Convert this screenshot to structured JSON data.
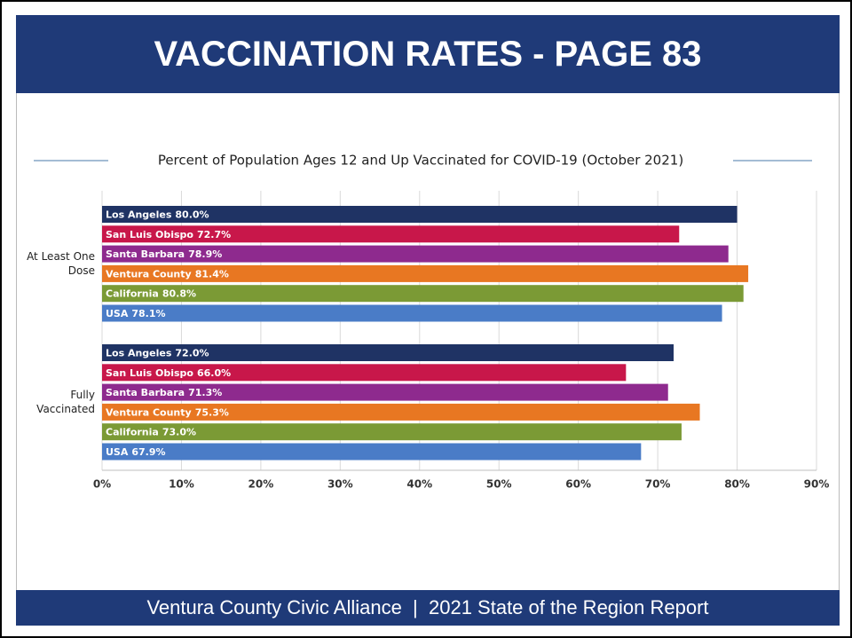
{
  "header": "VACCINATION RATES - PAGE 83",
  "footer": "Ventura County Civic Alliance  |  2021 State of the Region Report",
  "chart_data": {
    "type": "bar",
    "orientation": "horizontal",
    "title": "Percent of Population Ages 12 and Up Vaccinated for COVID-19 (October 2021)",
    "categories": [
      "At Least One Dose",
      "Fully Vaccinated"
    ],
    "series": [
      {
        "name": "Los Angeles",
        "color": "#1f3364",
        "values": [
          80.0,
          72.0
        ],
        "value_labels": [
          "80.0%",
          "72.0%"
        ]
      },
      {
        "name": "San Luis Obispo",
        "color": "#c8174a",
        "values": [
          72.7,
          66.0
        ],
        "value_labels": [
          "72.7%",
          "66.0%"
        ]
      },
      {
        "name": "Santa Barbara",
        "color": "#8e2a8e",
        "values": [
          78.9,
          71.3
        ],
        "value_labels": [
          "78.9%",
          "71.3%"
        ]
      },
      {
        "name": "Ventura County",
        "color": "#e87722",
        "values": [
          81.4,
          75.3
        ],
        "value_labels": [
          "81.4%",
          "75.3%"
        ]
      },
      {
        "name": "California",
        "color": "#7b9a35",
        "values": [
          80.8,
          73.0
        ],
        "value_labels": [
          "80.8%",
          "73.0%"
        ]
      },
      {
        "name": "USA",
        "color": "#4a7cc7",
        "values": [
          78.1,
          67.9
        ],
        "value_labels": [
          "78.1%",
          "67.9%"
        ]
      }
    ],
    "xlim": [
      0,
      90
    ],
    "xticks": [
      {
        "value": 0,
        "label": "0%"
      },
      {
        "value": 10,
        "label": "10%"
      },
      {
        "value": 20,
        "label": "20%"
      },
      {
        "value": 30,
        "label": "30%"
      },
      {
        "value": 40,
        "label": "40%"
      },
      {
        "value": 50,
        "label": "50%"
      },
      {
        "value": 60,
        "label": "60%"
      },
      {
        "value": 70,
        "label": "70%"
      },
      {
        "value": 80,
        "label": "80%"
      },
      {
        "value": 90,
        "label": "90%"
      }
    ],
    "grid": true
  }
}
